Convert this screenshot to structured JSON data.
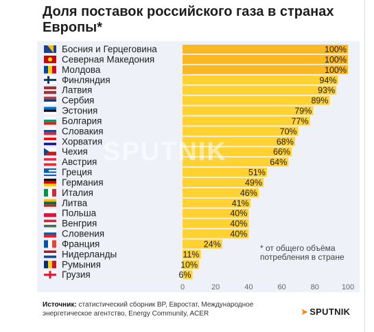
{
  "title": "Доля поставок российского газа в странах Европы*",
  "note": "* от общего объёма потребления в стране",
  "source_label": "Источник:",
  "source_text": "статистический сборник BP, Евростат, Международное энергетическое агентство, Energy Community, ACER",
  "brand": "SPUTNIK",
  "watermark": "SPUTNIK",
  "colors": {
    "bar": "#ffd231",
    "bar_full": "#fbb822",
    "text": "#1d1d1d",
    "panel": "#eef1f8"
  },
  "chart_data": {
    "type": "bar",
    "orientation": "horizontal",
    "categories": [
      "Босния и Герцеговина",
      "Северная Македония",
      "Молдова",
      "Финляндия",
      "Латвия",
      "Сербия",
      "Эстония",
      "Болгария",
      "Словакия",
      "Хорватия",
      "Чехия",
      "Австрия",
      "Греция",
      "Германия",
      "Италия",
      "Литва",
      "Польша",
      "Венгрия",
      "Словения",
      "Франция",
      "Нидерланды",
      "Румыния",
      "Грузия"
    ],
    "values": [
      100,
      100,
      100,
      94,
      93,
      89,
      79,
      77,
      70,
      68,
      66,
      64,
      51,
      49,
      46,
      41,
      40,
      40,
      40,
      24,
      11,
      10,
      6
    ],
    "value_labels": [
      "100%",
      "100%",
      "100%",
      "94%",
      "93%",
      "89%",
      "79%",
      "77%",
      "70%",
      "68%",
      "66%",
      "64%",
      "51%",
      "49%",
      "46%",
      "41%",
      "40%",
      "40%",
      "40%",
      "24%",
      "11%",
      "10%",
      "6%"
    ],
    "flags": [
      "flag-bosnia",
      "flag-north-macedonia",
      "flag-moldova",
      "flag-finland",
      "flag-latvia",
      "flag-serbia",
      "flag-estonia",
      "flag-bulgaria",
      "flag-slovakia",
      "flag-croatia",
      "flag-czechia",
      "flag-austria",
      "flag-greece",
      "flag-germany",
      "flag-italy",
      "flag-lithuania",
      "flag-poland",
      "flag-hungary",
      "flag-slovenia",
      "flag-france",
      "flag-netherlands",
      "flag-romania",
      "flag-georgia"
    ],
    "xlim": [
      0,
      100
    ],
    "xticks": [
      "0",
      "20",
      "40",
      "60",
      "80",
      "100"
    ],
    "grid": false
  }
}
